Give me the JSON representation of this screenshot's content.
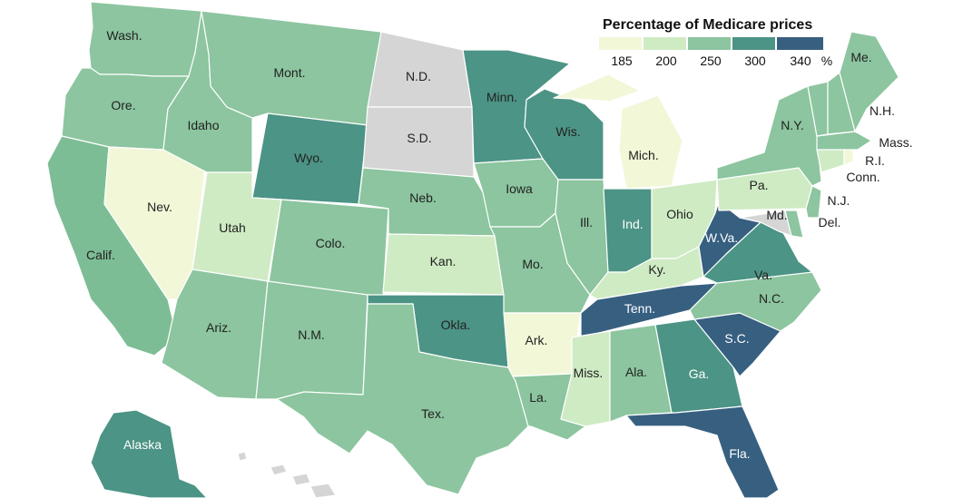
{
  "legend": {
    "title": "Percentage of Medicare prices",
    "ticks": [
      "185",
      "200",
      "250",
      "300",
      "340"
    ],
    "unit": "%",
    "bins": [
      {
        "color": "#f2f7d8"
      },
      {
        "color": "#cfebc4"
      },
      {
        "color": "#8cc59f"
      },
      {
        "color": "#4c9485"
      },
      {
        "color": "#375f80"
      }
    ]
  },
  "colors": {
    "no_data": "#d5d5d5",
    "bin1": "#f2f7d8",
    "bin2": "#cfebc4",
    "bin3": "#8cc59f",
    "bin3b": "#7dbd95",
    "bin4": "#4c9485",
    "bin5": "#375f80"
  },
  "states": [
    {
      "key": "wa",
      "label": "Wash."
    },
    {
      "key": "or",
      "label": "Ore."
    },
    {
      "key": "ca",
      "label": "Calif."
    },
    {
      "key": "nv",
      "label": "Nev."
    },
    {
      "key": "id",
      "label": "Idaho"
    },
    {
      "key": "mt",
      "label": "Mont."
    },
    {
      "key": "wy",
      "label": "Wyo."
    },
    {
      "key": "ut",
      "label": "Utah"
    },
    {
      "key": "co",
      "label": "Colo."
    },
    {
      "key": "az",
      "label": "Ariz."
    },
    {
      "key": "nm",
      "label": "N.M."
    },
    {
      "key": "nd",
      "label": "N.D."
    },
    {
      "key": "sd",
      "label": "S.D."
    },
    {
      "key": "ne",
      "label": "Neb."
    },
    {
      "key": "ks",
      "label": "Kan."
    },
    {
      "key": "ok",
      "label": "Okla."
    },
    {
      "key": "tx",
      "label": "Tex."
    },
    {
      "key": "mn",
      "label": "Minn."
    },
    {
      "key": "ia",
      "label": "Iowa"
    },
    {
      "key": "mo",
      "label": "Mo."
    },
    {
      "key": "ar",
      "label": "Ark."
    },
    {
      "key": "la",
      "label": "La."
    },
    {
      "key": "wi",
      "label": "Wis."
    },
    {
      "key": "il",
      "label": "Ill."
    },
    {
      "key": "mi",
      "label": "Mich."
    },
    {
      "key": "in",
      "label": "Ind."
    },
    {
      "key": "oh",
      "label": "Ohio"
    },
    {
      "key": "ky",
      "label": "Ky."
    },
    {
      "key": "tn",
      "label": "Tenn."
    },
    {
      "key": "ms",
      "label": "Miss."
    },
    {
      "key": "al",
      "label": "Ala."
    },
    {
      "key": "ga",
      "label": "Ga."
    },
    {
      "key": "fl",
      "label": "Fla."
    },
    {
      "key": "sc",
      "label": "S.C."
    },
    {
      "key": "nc",
      "label": "N.C."
    },
    {
      "key": "va",
      "label": "Va."
    },
    {
      "key": "wv",
      "label": "W.Va."
    },
    {
      "key": "pa",
      "label": "Pa."
    },
    {
      "key": "ny",
      "label": "N.Y."
    },
    {
      "key": "md",
      "label": "Md."
    },
    {
      "key": "de",
      "label": "Del."
    },
    {
      "key": "nj",
      "label": "N.J."
    },
    {
      "key": "ct",
      "label": "Conn."
    },
    {
      "key": "ri",
      "label": "R.I."
    },
    {
      "key": "ma",
      "label": "Mass."
    },
    {
      "key": "vt",
      "label": ""
    },
    {
      "key": "nh",
      "label": "N.H."
    },
    {
      "key": "me",
      "label": "Me."
    },
    {
      "key": "ak",
      "label": "Alaska"
    },
    {
      "key": "hi",
      "label": ""
    }
  ]
}
